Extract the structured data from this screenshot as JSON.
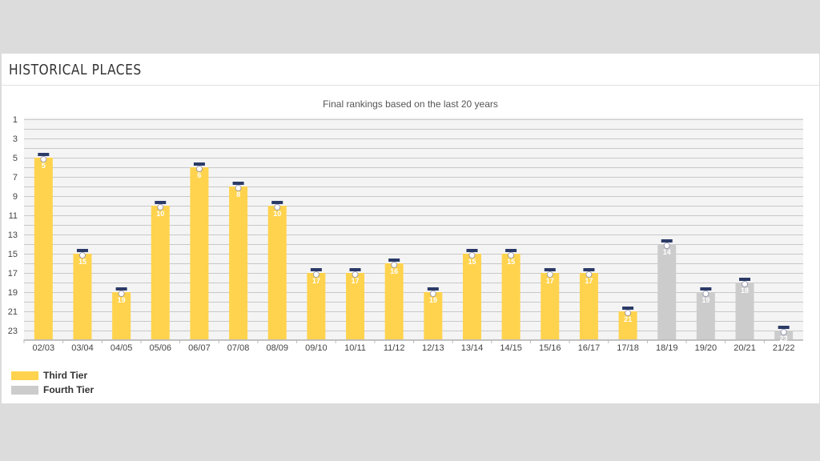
{
  "panel": {
    "title": "HISTORICAL PLACES"
  },
  "chart_data": {
    "type": "bar",
    "title": "Final rankings based on the last 20 years",
    "xlabel": "",
    "ylabel": "",
    "y_axis_inverted": true,
    "ylim": [
      1,
      24
    ],
    "yticks": [
      1,
      3,
      5,
      7,
      9,
      11,
      13,
      15,
      17,
      19,
      21,
      23
    ],
    "grid": true,
    "legend_placement": "bottom-left",
    "categories": [
      "02/03",
      "03/04",
      "04/05",
      "05/06",
      "06/07",
      "07/08",
      "08/09",
      "09/10",
      "10/11",
      "11/12",
      "12/13",
      "13/14",
      "14/15",
      "15/16",
      "16/17",
      "17/18",
      "18/19",
      "19/20",
      "20/21",
      "21/22"
    ],
    "values": [
      5,
      15,
      19,
      10,
      6,
      8,
      10,
      17,
      17,
      16,
      19,
      15,
      15,
      17,
      17,
      21,
      14,
      19,
      18,
      23
    ],
    "tiers": [
      "third",
      "third",
      "third",
      "third",
      "third",
      "third",
      "third",
      "third",
      "third",
      "third",
      "third",
      "third",
      "third",
      "third",
      "third",
      "third",
      "fourth",
      "fourth",
      "fourth",
      "fourth"
    ],
    "legend": [
      {
        "key": "third",
        "label": "Third Tier",
        "color": "#ffd34e"
      },
      {
        "key": "fourth",
        "label": "Fourth Tier",
        "color": "#cccccc"
      }
    ],
    "colors": {
      "third": "#ffd34e",
      "fourth": "#cccccc",
      "plot_bg": "#f4f4f4",
      "grid": "#c8c8c8"
    }
  }
}
